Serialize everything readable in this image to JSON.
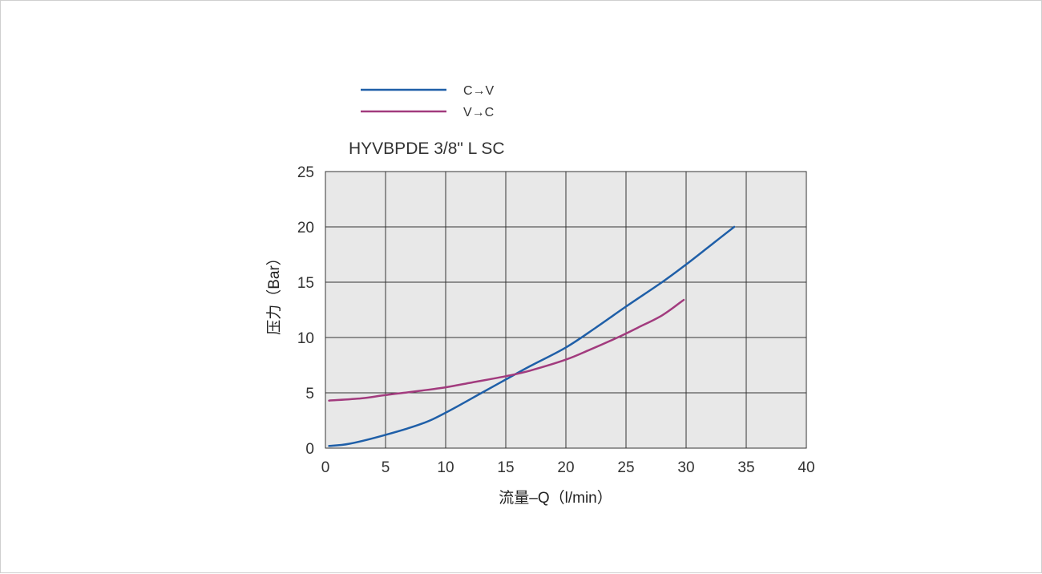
{
  "chart_data": {
    "type": "line",
    "title": "HYVBPDE 3/8\" L SC",
    "xlabel": "流量–Q（l/min）",
    "ylabel": "压力（Bar）",
    "xlim": [
      0,
      40
    ],
    "ylim": [
      0,
      25
    ],
    "x_ticks": [
      0,
      5,
      10,
      15,
      20,
      25,
      30,
      35,
      40
    ],
    "y_ticks": [
      0,
      5,
      10,
      15,
      20,
      25
    ],
    "x_tick_labels": [
      "0",
      "5",
      "10",
      "15",
      "20",
      "25",
      "30",
      "35",
      "40"
    ],
    "y_tick_labels": [
      "0",
      "5",
      "10",
      "15",
      "20",
      "25"
    ],
    "grid": true,
    "legend_position": "top-left",
    "series": [
      {
        "name": "C→V",
        "color": "#1f5fa8",
        "points": [
          [
            0.3,
            0.2
          ],
          [
            2,
            0.4
          ],
          [
            5,
            1.2
          ],
          [
            8,
            2.2
          ],
          [
            10,
            3.2
          ],
          [
            13,
            5.0
          ],
          [
            15,
            6.2
          ],
          [
            17,
            7.4
          ],
          [
            20,
            9.1
          ],
          [
            22.5,
            10.9
          ],
          [
            25,
            12.8
          ],
          [
            28,
            15.0
          ],
          [
            30,
            16.6
          ],
          [
            32,
            18.3
          ],
          [
            34,
            20.0
          ]
        ]
      },
      {
        "name": "V→C",
        "color": "#a23b7e",
        "points": [
          [
            0.3,
            4.3
          ],
          [
            3,
            4.5
          ],
          [
            5,
            4.8
          ],
          [
            8,
            5.2
          ],
          [
            10,
            5.5
          ],
          [
            12,
            5.9
          ],
          [
            15,
            6.5
          ],
          [
            17,
            7.0
          ],
          [
            20,
            8.0
          ],
          [
            22,
            8.9
          ],
          [
            24.5,
            10.1
          ],
          [
            26,
            10.9
          ],
          [
            28,
            12.0
          ],
          [
            29.8,
            13.4
          ]
        ]
      }
    ]
  }
}
